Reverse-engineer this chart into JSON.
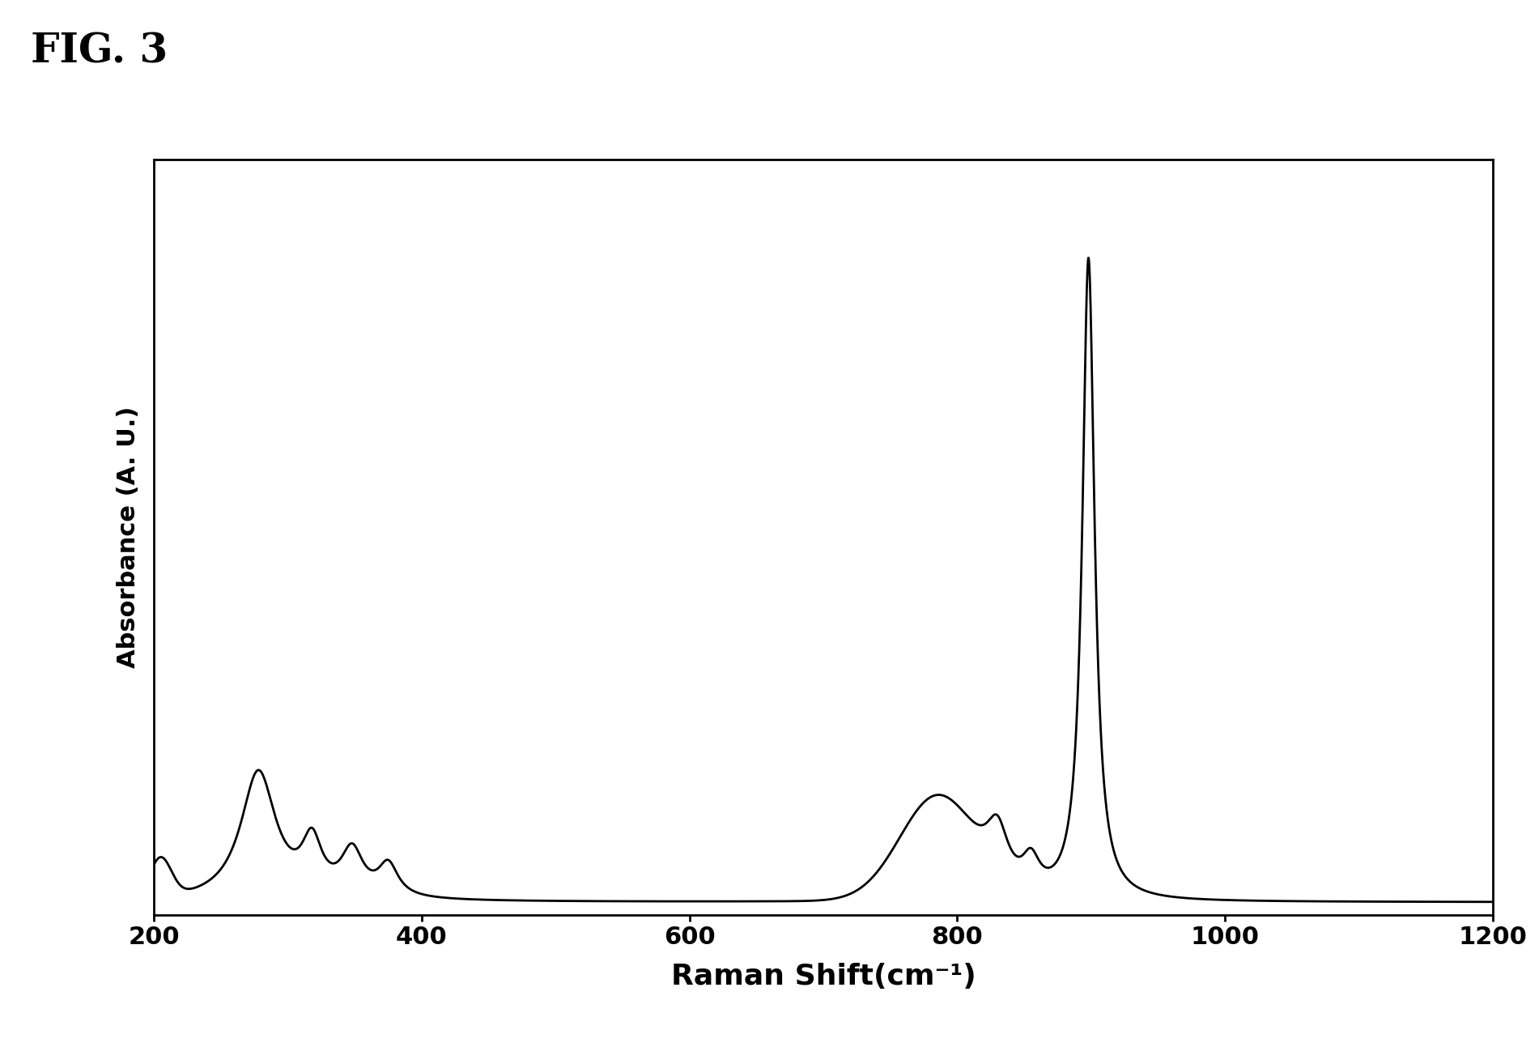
{
  "xlabel": "Raman Shift(cm⁻¹)",
  "ylabel": "Absorbance (A. U.)",
  "xlim": [
    200,
    1200
  ],
  "x_ticks": [
    200,
    400,
    600,
    800,
    1000,
    1200
  ],
  "line_color": "#000000",
  "line_width": 2.0,
  "background_color": "#ffffff",
  "fig_label": "FIG. 3",
  "xlabel_fontsize": 26,
  "ylabel_fontsize": 22,
  "tick_fontsize": 22,
  "fig_label_fontsize": 36
}
